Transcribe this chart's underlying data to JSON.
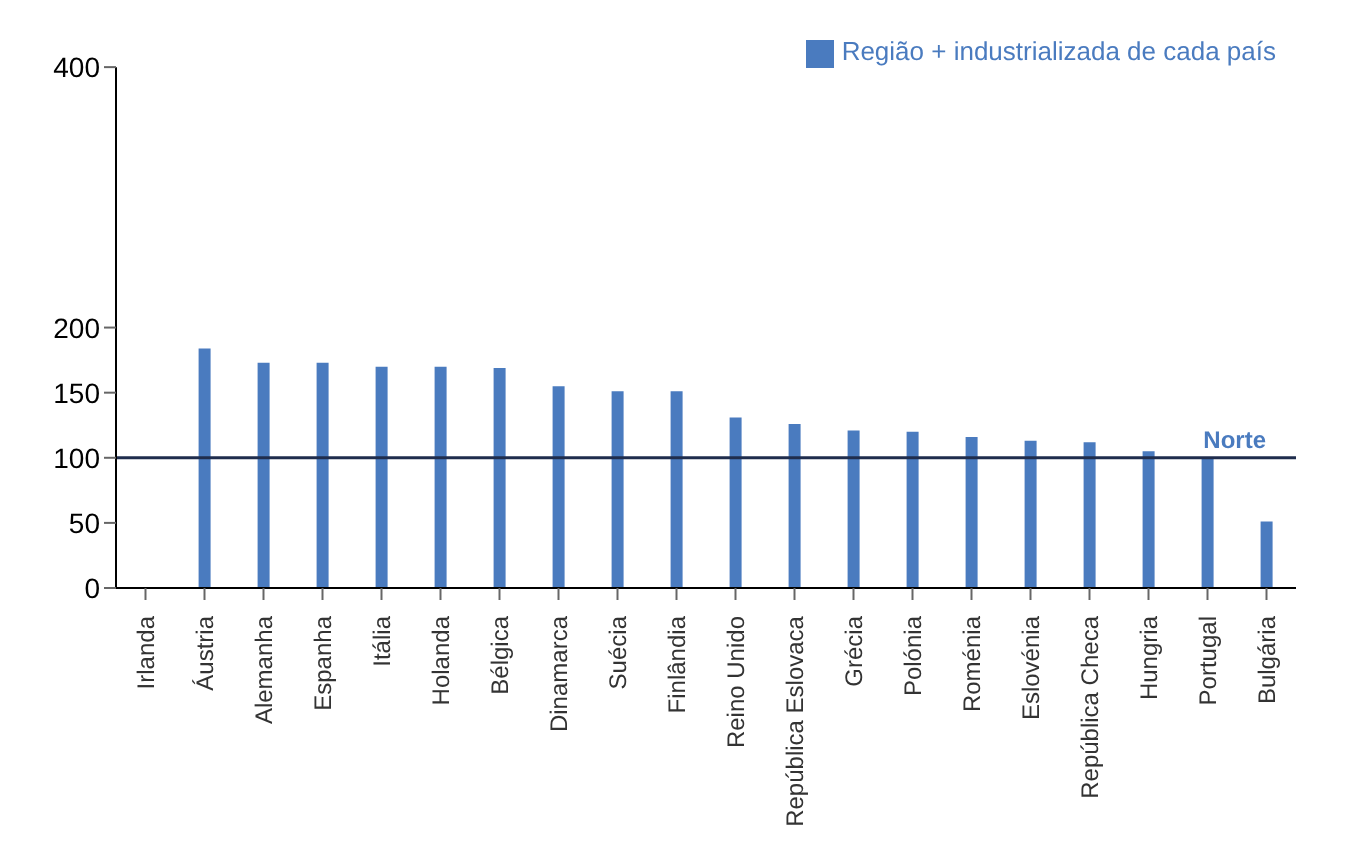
{
  "chart_data": {
    "type": "bar",
    "categories": [
      "Irlanda",
      "Áustria",
      "Alemanha",
      "Espanha",
      "Itália",
      "Holanda",
      "Bélgica",
      "Dinamarca",
      "Suécia",
      "Finlândia",
      "Reino Unido",
      "República Eslovaca",
      "Grécia",
      "Polónia",
      "Roménia",
      "Eslovénia",
      "República Checa",
      "Hungria",
      "Portugal",
      "Bulgária"
    ],
    "series": [
      {
        "name": "Região + industrializada de cada país",
        "color": "#4a7bbf",
        "values": [
          null,
          184,
          173,
          173,
          170,
          170,
          169,
          155,
          151,
          151,
          131,
          126,
          121,
          120,
          116,
          113,
          112,
          105,
          100,
          51
        ]
      }
    ],
    "ylim": [
      0,
      400
    ],
    "yticks": [
      0,
      50,
      100,
      150,
      200,
      400
    ],
    "ref_lines": [
      {
        "axis": "y",
        "value": 100,
        "label": "Norte",
        "color": "#1f2d4d"
      }
    ],
    "grid": false,
    "legend": "top right"
  }
}
